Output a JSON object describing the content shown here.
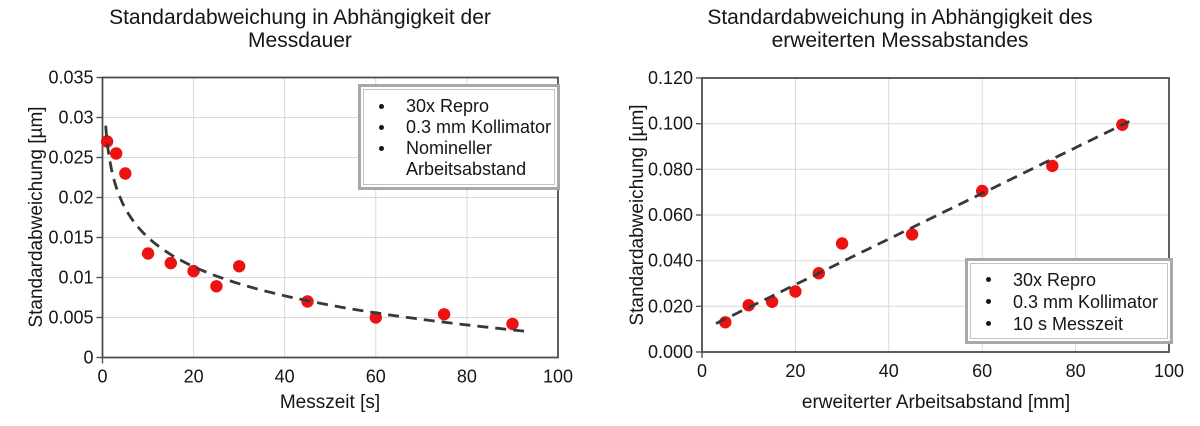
{
  "colors": {
    "point": "#ee1111",
    "trend": "#383838",
    "grid": "#d9d9d9",
    "axis": "#4d4d4d",
    "legend_border": "#a8a8a8",
    "text": "#161616"
  },
  "chart_data": [
    {
      "type": "scatter",
      "title": "Standardabweichung in Abhängigkeit der Messdauer",
      "title_lines": [
        "Standardabweichung in Abhängigkeit der",
        "Messdauer"
      ],
      "xlabel": "Messzeit [s]",
      "ylabel": "Standardabweichung [µm]",
      "xlim": [
        0,
        100
      ],
      "ylim": [
        0,
        0.035
      ],
      "xticks": [
        0,
        20,
        40,
        60,
        80,
        100
      ],
      "ytick_values": [
        0,
        0.005,
        0.01,
        0.015,
        0.02,
        0.025,
        0.03,
        0.035
      ],
      "ytick_labels": [
        "0",
        "0.005",
        "0.01",
        "0.015",
        "0.02",
        "0.025",
        "0.03",
        "0.035"
      ],
      "grid": true,
      "legend_position": "top-right",
      "legend": [
        "30x Repro",
        "0.3 mm Kollimator",
        "Nomineller Arbeitsabstand"
      ],
      "series": [
        {
          "name": "30x Repro",
          "x": [
            1,
            3,
            5,
            10,
            15,
            20,
            25,
            30,
            45,
            60,
            75,
            90
          ],
          "y": [
            0.027,
            0.0255,
            0.023,
            0.013,
            0.0118,
            0.0108,
            0.0089,
            0.0114,
            0.007,
            0.005,
            0.0054,
            0.0042
          ]
        }
      ],
      "trendline": {
        "style": "dashed",
        "type": "logarithmic",
        "formula": "y = 0.0271 - 0.00526*ln(x)",
        "a": 0.0271,
        "b": -0.005256,
        "x_start": 0.7,
        "x_end": 93
      }
    },
    {
      "type": "scatter",
      "title": "Standardabweichung in Abhängigkeit des erweiterten Messabstandes",
      "title_lines": [
        "Standardabweichung in Abhängigkeit des",
        "erweiterten Messabstandes"
      ],
      "xlabel": "erweiterter Arbeitsabstand [mm]",
      "ylabel": "Standardabweichung [µm]",
      "xlim": [
        0,
        100
      ],
      "ylim": [
        0,
        0.12
      ],
      "xticks": [
        0,
        20,
        40,
        60,
        80,
        100
      ],
      "ytick_values": [
        0,
        0.02,
        0.04,
        0.06,
        0.08,
        0.1,
        0.12
      ],
      "ytick_labels": [
        "0.000",
        "0.020",
        "0.040",
        "0.060",
        "0.080",
        "0.100",
        "0.120"
      ],
      "grid": true,
      "legend_position": "bottom-right",
      "legend": [
        "30x Repro",
        "0.3 mm Kollimator",
        "10 s Messzeit"
      ],
      "series": [
        {
          "name": "30x Repro",
          "x": [
            5,
            10,
            15,
            20,
            25,
            30,
            45,
            60,
            75,
            90
          ],
          "y": [
            0.013,
            0.0205,
            0.022,
            0.0265,
            0.0345,
            0.0475,
            0.0515,
            0.0705,
            0.0815,
            0.0995
          ]
        }
      ],
      "trendline": {
        "style": "dashed",
        "type": "linear",
        "formula": "y = 0.0095 + 0.001*x",
        "slope": 0.001,
        "intercept": 0.0095,
        "x_start": 3,
        "x_end": 91.5
      }
    }
  ]
}
